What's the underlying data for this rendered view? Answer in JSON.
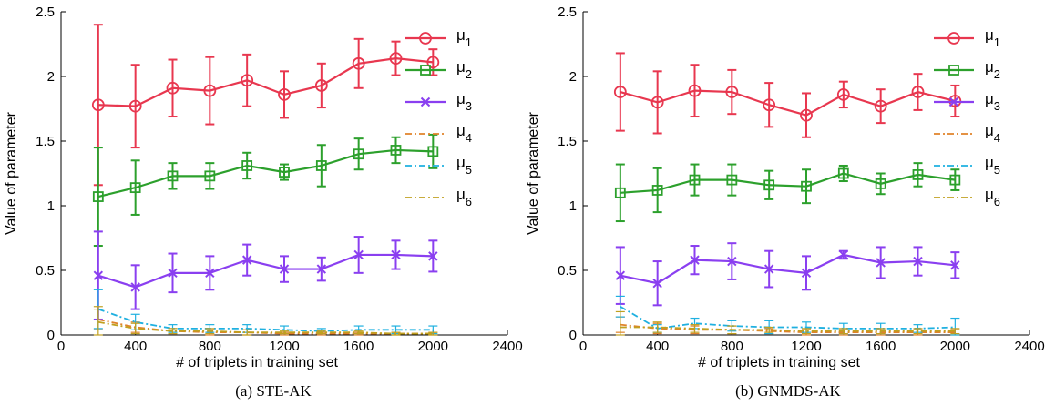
{
  "chart_data": [
    {
      "type": "line",
      "caption": "(a) STE-AK",
      "xlabel": "# of triplets in training set",
      "ylabel": "Value of parameter",
      "xlim": [
        0,
        2400
      ],
      "ylim": [
        0,
        2.5
      ],
      "xticks": [
        "0",
        "400",
        "800",
        "1200",
        "1600",
        "2000",
        "2400"
      ],
      "yticks": [
        "0",
        "0.5",
        "1",
        "1.5",
        "2",
        "2.5"
      ],
      "legend_position": "top-right",
      "x": [
        200,
        400,
        600,
        800,
        1000,
        1200,
        1400,
        1600,
        1800,
        2000
      ],
      "series": [
        {
          "name": "μ",
          "subscript": "1",
          "color": "#e8374f",
          "marker": "circle",
          "dash": "solid",
          "values": [
            1.78,
            1.77,
            1.91,
            1.89,
            1.97,
            1.86,
            1.93,
            2.1,
            2.14,
            2.11
          ],
          "errors": [
            0.62,
            0.32,
            0.22,
            0.26,
            0.2,
            0.18,
            0.17,
            0.19,
            0.13,
            0.1
          ]
        },
        {
          "name": "μ",
          "subscript": "2",
          "color": "#2ca02c",
          "marker": "square",
          "dash": "solid",
          "values": [
            1.07,
            1.14,
            1.23,
            1.23,
            1.31,
            1.26,
            1.31,
            1.4,
            1.43,
            1.42
          ],
          "errors": [
            0.38,
            0.21,
            0.1,
            0.1,
            0.1,
            0.06,
            0.16,
            0.12,
            0.1,
            0.13
          ]
        },
        {
          "name": "μ",
          "subscript": "3",
          "color": "#8a3ff0",
          "marker": "x",
          "dash": "solid",
          "values": [
            0.46,
            0.37,
            0.48,
            0.48,
            0.58,
            0.51,
            0.51,
            0.62,
            0.62,
            0.61
          ],
          "errors": [
            0.34,
            0.17,
            0.15,
            0.13,
            0.12,
            0.1,
            0.09,
            0.14,
            0.11,
            0.12
          ]
        },
        {
          "name": "μ",
          "subscript": "4",
          "color": "#e0822a",
          "marker": "none",
          "dash": "dashdot",
          "values": [
            0.12,
            0.06,
            0.03,
            0.02,
            0.02,
            0.01,
            0.01,
            0.01,
            0.01,
            0.01
          ],
          "errors": [
            0.08,
            0.04,
            0.02,
            0.02,
            0.02,
            0.01,
            0.01,
            0.01,
            0.01,
            0.01
          ]
        },
        {
          "name": "μ",
          "subscript": "5",
          "color": "#1fb0e0",
          "marker": "none",
          "dash": "dashdot",
          "values": [
            0.2,
            0.1,
            0.05,
            0.05,
            0.05,
            0.04,
            0.03,
            0.04,
            0.04,
            0.04
          ],
          "errors": [
            0.15,
            0.06,
            0.03,
            0.03,
            0.03,
            0.03,
            0.02,
            0.03,
            0.03,
            0.03
          ]
        },
        {
          "name": "μ",
          "subscript": "6",
          "color": "#c0a020",
          "marker": "none",
          "dash": "dashdot",
          "values": [
            0.1,
            0.05,
            0.03,
            0.03,
            0.02,
            0.02,
            0.02,
            0.02,
            0.01,
            0.01
          ],
          "errors": [
            0.12,
            0.04,
            0.02,
            0.02,
            0.02,
            0.01,
            0.01,
            0.01,
            0.01,
            0.01
          ]
        }
      ]
    },
    {
      "type": "line",
      "caption": "(b) GNMDS-AK",
      "xlabel": "# of triplets in training set",
      "ylabel": "Value of parameter",
      "xlim": [
        0,
        2400
      ],
      "ylim": [
        0,
        2.5
      ],
      "xticks": [
        "0",
        "400",
        "800",
        "1200",
        "1600",
        "2000",
        "2400"
      ],
      "yticks": [
        "0",
        "0.5",
        "1",
        "1.5",
        "2",
        "2.5"
      ],
      "legend_position": "top-right",
      "x": [
        200,
        400,
        600,
        800,
        1000,
        1200,
        1400,
        1600,
        1800,
        2000
      ],
      "series": [
        {
          "name": "μ",
          "subscript": "1",
          "color": "#e8374f",
          "marker": "circle",
          "dash": "solid",
          "values": [
            1.88,
            1.8,
            1.89,
            1.88,
            1.78,
            1.7,
            1.86,
            1.77,
            1.88,
            1.81
          ],
          "errors": [
            0.3,
            0.24,
            0.2,
            0.17,
            0.17,
            0.17,
            0.1,
            0.13,
            0.14,
            0.12
          ]
        },
        {
          "name": "μ",
          "subscript": "2",
          "color": "#2ca02c",
          "marker": "square",
          "dash": "solid",
          "values": [
            1.1,
            1.12,
            1.2,
            1.2,
            1.16,
            1.15,
            1.25,
            1.17,
            1.24,
            1.2
          ],
          "errors": [
            0.22,
            0.17,
            0.12,
            0.12,
            0.11,
            0.13,
            0.06,
            0.08,
            0.09,
            0.08
          ]
        },
        {
          "name": "μ",
          "subscript": "3",
          "color": "#8a3ff0",
          "marker": "x",
          "dash": "solid",
          "values": [
            0.46,
            0.4,
            0.58,
            0.57,
            0.51,
            0.48,
            0.62,
            0.56,
            0.57,
            0.54
          ],
          "errors": [
            0.22,
            0.17,
            0.11,
            0.14,
            0.14,
            0.13,
            0.03,
            0.12,
            0.11,
            0.1
          ]
        },
        {
          "name": "μ",
          "subscript": "4",
          "color": "#e0822a",
          "marker": "none",
          "dash": "dashdot",
          "values": [
            0.08,
            0.05,
            0.04,
            0.04,
            0.03,
            0.02,
            0.02,
            0.02,
            0.02,
            0.02
          ],
          "errors": [
            0.06,
            0.04,
            0.03,
            0.03,
            0.02,
            0.02,
            0.02,
            0.02,
            0.02,
            0.02
          ]
        },
        {
          "name": "μ",
          "subscript": "5",
          "color": "#1fb0e0",
          "marker": "none",
          "dash": "dashdot",
          "values": [
            0.22,
            0.05,
            0.09,
            0.07,
            0.06,
            0.06,
            0.05,
            0.05,
            0.05,
            0.06
          ],
          "errors": [
            0.08,
            0.03,
            0.04,
            0.04,
            0.05,
            0.04,
            0.04,
            0.04,
            0.03,
            0.07
          ]
        },
        {
          "name": "μ",
          "subscript": "6",
          "color": "#c0a020",
          "marker": "none",
          "dash": "dashdot",
          "values": [
            0.06,
            0.06,
            0.05,
            0.04,
            0.04,
            0.03,
            0.03,
            0.03,
            0.03,
            0.03
          ],
          "errors": [
            0.12,
            0.04,
            0.03,
            0.03,
            0.02,
            0.02,
            0.02,
            0.02,
            0.02,
            0.02
          ]
        }
      ]
    }
  ]
}
